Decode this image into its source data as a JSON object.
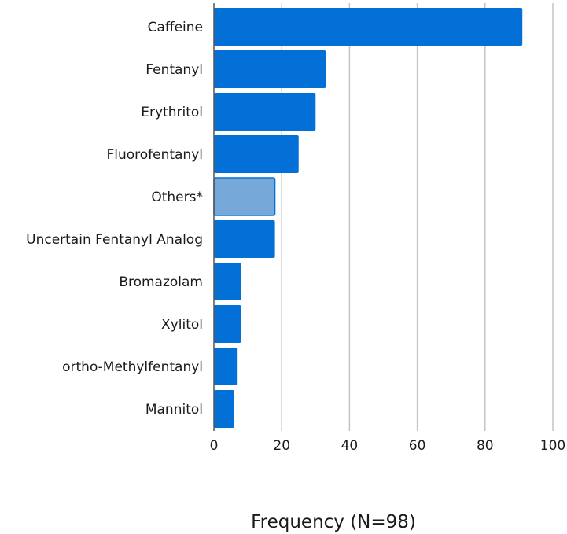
{
  "chart_data": {
    "type": "bar",
    "orientation": "horizontal",
    "title": "",
    "xlabel": "Frequency (N=98)",
    "ylabel": "",
    "xlim": [
      0,
      100
    ],
    "xticks": [
      0,
      20,
      40,
      60,
      80,
      100
    ],
    "grid": true,
    "categories": [
      "Caffeine",
      "Fentanyl",
      "Erythritol",
      "Fluorofentanyl",
      "Others*",
      "Uncertain Fentanyl Analog",
      "Bromazolam",
      "Xylitol",
      "ortho-Methylfentanyl",
      "Mannitol"
    ],
    "values": [
      91,
      33,
      30,
      25,
      18,
      18,
      8,
      8,
      7,
      6
    ],
    "colors": {
      "bar": "#0270d7",
      "bar_highlight": "#76a8d9",
      "grid": "#c4c4c4",
      "axis": "#555555"
    },
    "highlight_category": "Others*"
  }
}
